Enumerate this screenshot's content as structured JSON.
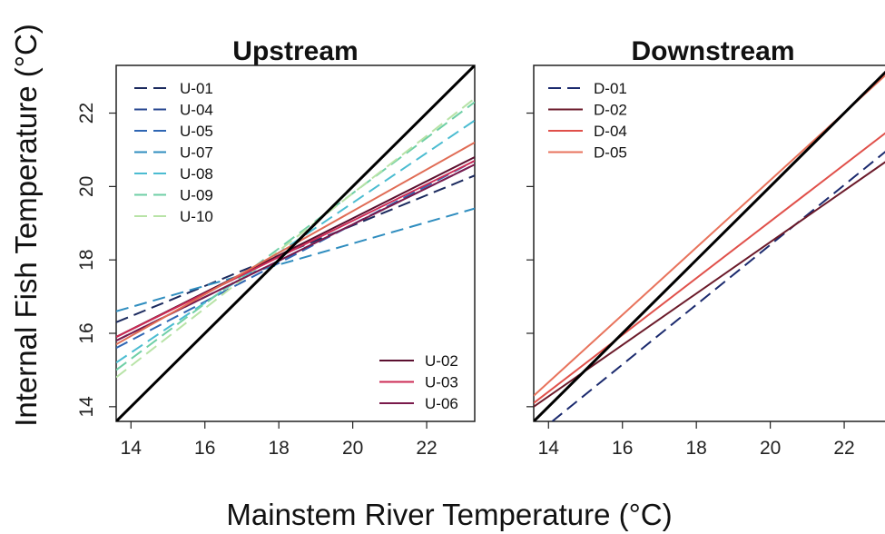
{
  "chart_data": [
    {
      "type": "line",
      "title": "Upstream",
      "xlim": [
        13.6,
        23.3
      ],
      "ylim": [
        13.6,
        23.3
      ],
      "x_ticks": [
        14,
        16,
        18,
        20,
        22
      ],
      "y_ticks": [
        14,
        16,
        18,
        20,
        22
      ],
      "reference_line": {
        "x": [
          13.6,
          23.3
        ],
        "y": [
          13.6,
          23.3
        ],
        "color": "#000000"
      },
      "series": [
        {
          "name": "U-01",
          "style": "dashed",
          "color": "#1b2a5e",
          "x": [
            13.6,
            23.3
          ],
          "y": [
            16.3,
            20.3
          ]
        },
        {
          "name": "U-04",
          "style": "dashed",
          "color": "#25448f",
          "x": [
            13.6,
            23.3
          ],
          "y": [
            15.8,
            20.6
          ]
        },
        {
          "name": "U-05",
          "style": "dashed",
          "color": "#2f66b3",
          "x": [
            13.6,
            23.3
          ],
          "y": [
            15.6,
            20.7
          ]
        },
        {
          "name": "U-07",
          "style": "dashed",
          "color": "#2f8dbf",
          "x": [
            13.6,
            23.3
          ],
          "y": [
            16.6,
            19.4
          ]
        },
        {
          "name": "U-08",
          "style": "dashed",
          "color": "#4bbcd1",
          "x": [
            13.6,
            23.3
          ],
          "y": [
            15.2,
            21.8
          ]
        },
        {
          "name": "U-09",
          "style": "dashed",
          "color": "#6fcfa6",
          "x": [
            13.6,
            23.3
          ],
          "y": [
            15.0,
            22.3
          ]
        },
        {
          "name": "U-10",
          "style": "dashed",
          "color": "#b8e3a7",
          "x": [
            13.6,
            23.3
          ],
          "y": [
            14.8,
            22.4
          ]
        },
        {
          "name": "U-02",
          "style": "solid",
          "color": "#5c1030",
          "x": [
            13.6,
            23.3
          ],
          "y": [
            15.9,
            20.8
          ]
        },
        {
          "name": "U-03",
          "style": "solid",
          "color": "#cc2b55",
          "x": [
            13.6,
            23.3
          ],
          "y": [
            15.9,
            20.7
          ]
        },
        {
          "name": "U-06",
          "style": "solid",
          "color": "#7a1a4c",
          "x": [
            13.6,
            23.3
          ],
          "y": [
            15.8,
            20.6
          ]
        },
        {
          "name": "",
          "style": "solid",
          "color": "#e06c55",
          "x": [
            13.6,
            23.3
          ],
          "y": [
            15.7,
            21.2
          ]
        }
      ],
      "legends": [
        {
          "position": "top-left",
          "entries": [
            "U-01",
            "U-04",
            "U-05",
            "U-07",
            "U-08",
            "U-09",
            "U-10"
          ]
        },
        {
          "position": "bottom-right",
          "entries": [
            "U-02",
            "U-03",
            "U-06"
          ]
        }
      ]
    },
    {
      "type": "line",
      "title": "Downstream",
      "xlim": [
        13.6,
        23.3
      ],
      "ylim": [
        13.6,
        23.3
      ],
      "x_ticks": [
        14,
        16,
        18,
        20,
        22
      ],
      "y_ticks": [
        14,
        16,
        18,
        20,
        22
      ],
      "reference_line": {
        "x": [
          13.6,
          23.3
        ],
        "y": [
          13.6,
          23.3
        ],
        "color": "#000000"
      },
      "series": [
        {
          "name": "D-01",
          "style": "dashed",
          "color": "#1b2a6e",
          "x": [
            14.1,
            23.3
          ],
          "y": [
            13.6,
            21.1
          ]
        },
        {
          "name": "D-02",
          "style": "solid",
          "color": "#6b1a2a",
          "x": [
            13.6,
            23.3
          ],
          "y": [
            14.0,
            20.8
          ]
        },
        {
          "name": "D-04",
          "style": "solid",
          "color": "#e0504a",
          "x": [
            13.6,
            23.3
          ],
          "y": [
            14.1,
            21.6
          ]
        },
        {
          "name": "D-05",
          "style": "solid",
          "color": "#e8735c",
          "x": [
            13.6,
            23.3
          ],
          "y": [
            14.3,
            23.2
          ]
        }
      ],
      "legends": [
        {
          "position": "top-left",
          "entries": [
            "D-01",
            "D-02",
            "D-04",
            "D-05"
          ]
        }
      ]
    }
  ],
  "axes": {
    "xlabel": "Mainstem River Temperature (°C)",
    "ylabel": "Internal Fish Temperature (°C)"
  }
}
